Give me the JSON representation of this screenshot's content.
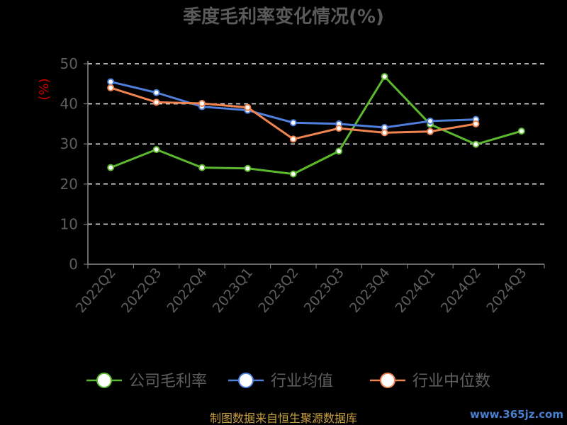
{
  "chart_data": {
    "type": "line",
    "title": "季度毛利率变化情况(%)",
    "ylabel": "(%)",
    "xlabel": "",
    "ylim": [
      0,
      50
    ],
    "yticks": [
      0,
      10,
      20,
      30,
      40,
      50
    ],
    "grid": true,
    "legend_position": "bottom",
    "categories": [
      "2022Q2",
      "2022Q3",
      "2022Q4",
      "2023Q1",
      "2023Q2",
      "2023Q3",
      "2023Q4",
      "2024Q1",
      "2024Q2",
      "2024Q3"
    ],
    "series": [
      {
        "name": "公司毛利率",
        "color": "#5cb82e",
        "values": [
          24.1,
          28.6,
          24.1,
          23.9,
          22.5,
          28.2,
          46.8,
          34.9,
          29.9,
          33.2
        ]
      },
      {
        "name": "行业均值",
        "color": "#4f7fdb",
        "values": [
          45.5,
          42.8,
          39.3,
          38.4,
          35.3,
          35.0,
          34.1,
          35.7,
          36.1,
          null
        ]
      },
      {
        "name": "行业中位数",
        "color": "#f08450",
        "values": [
          44.0,
          40.4,
          40.1,
          39.1,
          31.2,
          33.9,
          32.8,
          33.1,
          35.0,
          null
        ]
      }
    ]
  },
  "footer": {
    "source": "制图数据来自恒生聚源数据库",
    "watermark": "www.365jz.com"
  }
}
